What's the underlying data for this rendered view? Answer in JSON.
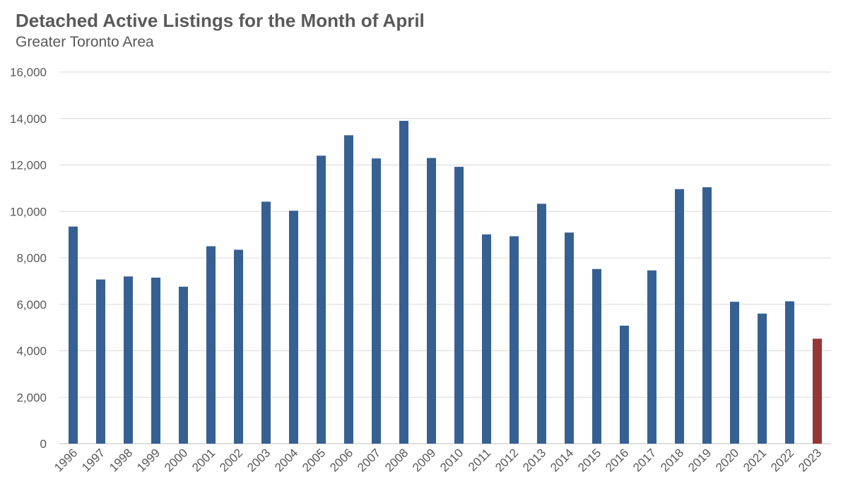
{
  "chart_data": {
    "type": "bar",
    "title": "Detached Active Listings for the Month of April",
    "subtitle": "Greater Toronto Area",
    "xlabel": "",
    "ylabel": "",
    "ylim": [
      0,
      16000
    ],
    "yticks": [
      "0",
      "2,000",
      "4,000",
      "6,000",
      "8,000",
      "10,000",
      "12,000",
      "14,000",
      "16,000"
    ],
    "grid": true,
    "legend": "none",
    "categories": [
      "1996",
      "1997",
      "1998",
      "1999",
      "2000",
      "2001",
      "2002",
      "2003",
      "2004",
      "2005",
      "2006",
      "2007",
      "2008",
      "2009",
      "2010",
      "2011",
      "2012",
      "2013",
      "2014",
      "2015",
      "2016",
      "2017",
      "2018",
      "2019",
      "2020",
      "2021",
      "2022",
      "2023"
    ],
    "values": [
      9350,
      7070,
      7200,
      7150,
      6760,
      8500,
      8350,
      10420,
      10030,
      12400,
      13280,
      12280,
      13900,
      12300,
      11920,
      9010,
      8930,
      10330,
      9090,
      7520,
      5080,
      7460,
      10960,
      11040,
      6110,
      5600,
      6130,
      4520
    ],
    "colors": {
      "bar": "#366092",
      "highlight": "#953735",
      "grid": "#d9d9d9",
      "text": "#595959"
    },
    "highlight_category": "2023"
  }
}
